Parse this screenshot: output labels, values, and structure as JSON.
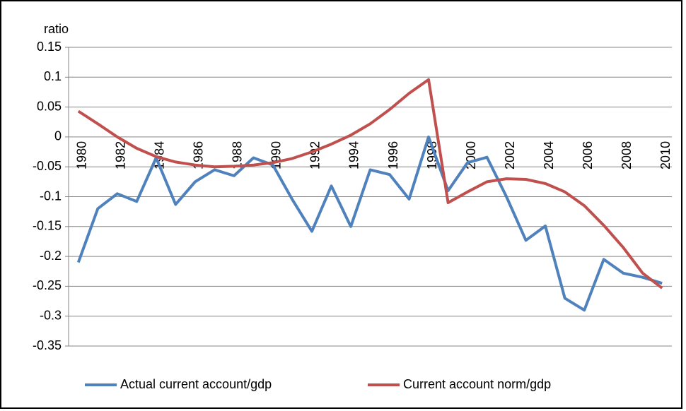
{
  "chart_data": {
    "type": "line",
    "y_label": "ratio",
    "categories": [
      "1980",
      null,
      "1982",
      null,
      "1984",
      null,
      "1986",
      null,
      "1988",
      null,
      "1990",
      null,
      "1992",
      null,
      "1994",
      null,
      "1996",
      null,
      "1998",
      null,
      "2000",
      null,
      "2002",
      null,
      "2004",
      null,
      "2006",
      null,
      "2008",
      null,
      "2010"
    ],
    "series": [
      {
        "name": "Actual current account/gdp",
        "color": "#4f81bd",
        "values": [
          -0.21,
          -0.12,
          -0.095,
          -0.108,
          -0.035,
          -0.113,
          -0.075,
          -0.055,
          -0.065,
          -0.035,
          -0.047,
          -0.105,
          -0.158,
          -0.082,
          -0.15,
          -0.055,
          -0.063,
          -0.104,
          0,
          -0.09,
          -0.043,
          -0.034,
          -0.1,
          -0.173,
          -0.149,
          -0.27,
          -0.29,
          -0.205,
          -0.228,
          -0.235,
          -0.245
        ]
      },
      {
        "name": "Current account norm/gdp",
        "color": "#c0504d",
        "values": [
          0.043,
          0.022,
          0,
          -0.019,
          -0.033,
          -0.042,
          -0.047,
          -0.05,
          -0.049,
          -0.047,
          -0.043,
          -0.036,
          -0.025,
          -0.012,
          0.003,
          0.022,
          0.046,
          0.073,
          0.096,
          -0.11,
          -0.092,
          -0.075,
          -0.07,
          -0.071,
          -0.078,
          -0.092,
          -0.115,
          -0.148,
          -0.185,
          -0.228,
          -0.253
        ]
      }
    ],
    "ylim": [
      -0.35,
      0.15
    ],
    "yticks": [
      0.15,
      0.1,
      0.05,
      0,
      -0.05,
      -0.1,
      -0.15,
      -0.2,
      -0.25,
      -0.3,
      -0.35
    ],
    "grid": true,
    "legend": "bottom"
  }
}
